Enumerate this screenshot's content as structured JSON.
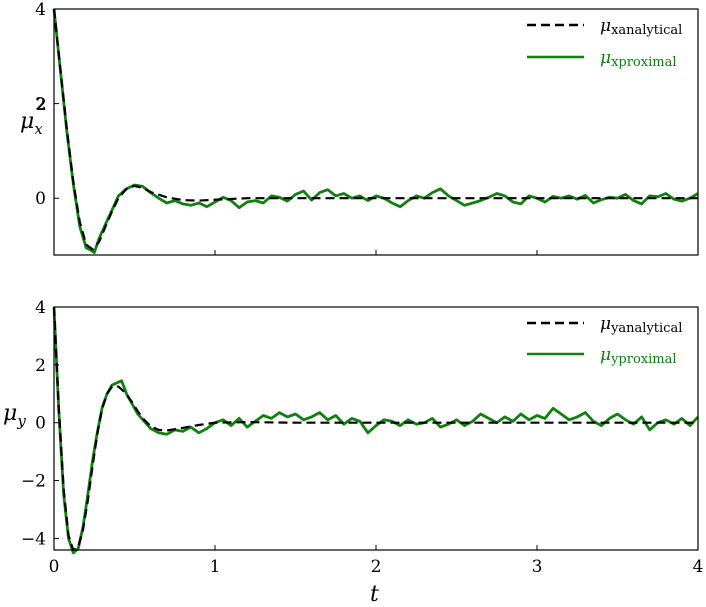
{
  "chart_data": [
    {
      "type": "line",
      "ylabel_main": "μ",
      "ylabel_sub": "x",
      "ylabel_sup": "2",
      "xlim": [
        0,
        4
      ],
      "ylim": [
        -1.2,
        4
      ],
      "yticks": [
        0,
        2,
        4
      ],
      "ytick_labels": [
        "0",
        "2",
        "4"
      ],
      "xticks": [
        0,
        1,
        2,
        3,
        4
      ],
      "xtick_labels": [],
      "legend_placement": "top-right",
      "grid": false,
      "series": [
        {
          "name_main": "μ",
          "name_sub": "xanalytical",
          "color": "#000000",
          "style": "dashed",
          "x": [
            0,
            0.04,
            0.08,
            0.12,
            0.16,
            0.2,
            0.24,
            0.28,
            0.32,
            0.36,
            0.4,
            0.45,
            0.5,
            0.55,
            0.6,
            0.7,
            0.8,
            0.9,
            1.0,
            1.2,
            1.5,
            2.0,
            2.5,
            3.0,
            3.5,
            4.0
          ],
          "values": [
            4.0,
            2.72,
            1.45,
            0.35,
            -0.5,
            -0.98,
            -1.08,
            -0.92,
            -0.6,
            -0.28,
            0.0,
            0.2,
            0.26,
            0.22,
            0.13,
            0.02,
            -0.04,
            -0.05,
            -0.03,
            0.0,
            0.0,
            0.0,
            0.0,
            0.0,
            0.0,
            0.0
          ]
        },
        {
          "name_main": "μ",
          "name_sub": "xproximal",
          "color": "#118011",
          "style": "solid",
          "x": [
            0,
            0.04,
            0.08,
            0.12,
            0.16,
            0.2,
            0.23,
            0.25,
            0.28,
            0.32,
            0.36,
            0.4,
            0.45,
            0.5,
            0.55,
            0.6,
            0.65,
            0.7,
            0.75,
            0.8,
            0.85,
            0.9,
            0.95,
            1.0,
            1.05,
            1.1,
            1.15,
            1.2,
            1.25,
            1.3,
            1.35,
            1.4,
            1.45,
            1.5,
            1.55,
            1.6,
            1.65,
            1.7,
            1.75,
            1.8,
            1.85,
            1.9,
            1.95,
            2.0,
            2.05,
            2.1,
            2.15,
            2.2,
            2.25,
            2.3,
            2.35,
            2.4,
            2.45,
            2.5,
            2.55,
            2.6,
            2.65,
            2.7,
            2.75,
            2.8,
            2.85,
            2.9,
            2.95,
            3.0,
            3.05,
            3.1,
            3.15,
            3.2,
            3.25,
            3.3,
            3.35,
            3.4,
            3.45,
            3.5,
            3.55,
            3.6,
            3.65,
            3.7,
            3.75,
            3.8,
            3.85,
            3.9,
            3.95,
            4.0
          ],
          "values": [
            4.0,
            2.7,
            1.4,
            0.3,
            -0.6,
            -1.05,
            -1.1,
            -1.15,
            -0.85,
            -0.55,
            -0.25,
            0.05,
            0.2,
            0.28,
            0.25,
            0.12,
            0.0,
            -0.1,
            -0.05,
            -0.12,
            -0.15,
            -0.1,
            -0.18,
            -0.08,
            0.02,
            -0.05,
            -0.2,
            -0.08,
            -0.05,
            -0.1,
            0.05,
            0.02,
            -0.06,
            0.08,
            0.15,
            -0.04,
            0.12,
            0.18,
            0.05,
            0.1,
            0.0,
            0.05,
            -0.05,
            0.05,
            0.0,
            -0.1,
            -0.18,
            -0.05,
            0.05,
            0.0,
            0.12,
            0.2,
            0.05,
            -0.05,
            -0.15,
            -0.1,
            -0.05,
            0.02,
            0.1,
            0.05,
            -0.08,
            -0.12,
            0.05,
            0.0,
            -0.08,
            0.04,
            0.0,
            0.05,
            -0.02,
            0.06,
            -0.1,
            -0.03,
            0.02,
            0.0,
            0.08,
            -0.05,
            -0.12,
            0.05,
            0.03,
            0.1,
            -0.02,
            -0.06,
            0.0,
            0.1
          ]
        }
      ]
    },
    {
      "type": "line",
      "ylabel_main": "μ",
      "ylabel_sub": "y",
      "xlabel": "t",
      "xlim": [
        0,
        4
      ],
      "ylim": [
        -4.4,
        4
      ],
      "yticks": [
        -4,
        -2,
        0,
        2,
        4
      ],
      "ytick_labels": [
        "−4",
        "−2",
        "0",
        "2",
        "4"
      ],
      "xticks": [
        0,
        1,
        2,
        3,
        4
      ],
      "xtick_labels": [
        "0",
        "1",
        "2",
        "3",
        "4"
      ],
      "legend_placement": "top-right",
      "grid": false,
      "series": [
        {
          "name_main": "μ",
          "name_sub": "yanalytical",
          "color": "#000000",
          "style": "dashed",
          "x": [
            0,
            0.03,
            0.06,
            0.09,
            0.12,
            0.15,
            0.18,
            0.21,
            0.24,
            0.27,
            0.3,
            0.33,
            0.36,
            0.4,
            0.44,
            0.48,
            0.52,
            0.56,
            0.6,
            0.65,
            0.7,
            0.8,
            0.9,
            1.0,
            1.2,
            1.5,
            2.0,
            2.5,
            3.0,
            3.5,
            4.0
          ],
          "values": [
            4.0,
            0.5,
            -2.3,
            -3.9,
            -4.4,
            -4.3,
            -3.7,
            -2.7,
            -1.5,
            -0.35,
            0.5,
            1.0,
            1.25,
            1.25,
            1.05,
            0.75,
            0.4,
            0.1,
            -0.12,
            -0.25,
            -0.27,
            -0.18,
            -0.08,
            0.0,
            0.02,
            0.0,
            0.0,
            0.0,
            0.0,
            0.0,
            0.0
          ]
        },
        {
          "name_main": "μ",
          "name_sub": "yproximal",
          "color": "#118011",
          "style": "solid",
          "x": [
            0,
            0.03,
            0.06,
            0.09,
            0.12,
            0.15,
            0.18,
            0.21,
            0.24,
            0.27,
            0.3,
            0.33,
            0.36,
            0.4,
            0.42,
            0.45,
            0.48,
            0.52,
            0.56,
            0.6,
            0.65,
            0.7,
            0.75,
            0.8,
            0.85,
            0.9,
            0.95,
            1.0,
            1.05,
            1.1,
            1.15,
            1.2,
            1.25,
            1.3,
            1.35,
            1.4,
            1.45,
            1.5,
            1.55,
            1.6,
            1.65,
            1.7,
            1.75,
            1.8,
            1.85,
            1.9,
            1.95,
            2.0,
            2.05,
            2.1,
            2.15,
            2.2,
            2.25,
            2.3,
            2.35,
            2.4,
            2.45,
            2.5,
            2.55,
            2.6,
            2.65,
            2.7,
            2.75,
            2.8,
            2.85,
            2.9,
            2.95,
            3.0,
            3.05,
            3.1,
            3.15,
            3.2,
            3.25,
            3.3,
            3.35,
            3.4,
            3.45,
            3.5,
            3.55,
            3.6,
            3.65,
            3.7,
            3.75,
            3.8,
            3.85,
            3.9,
            3.95,
            4.0
          ],
          "values": [
            4.0,
            0.4,
            -2.5,
            -4.0,
            -4.5,
            -4.35,
            -3.6,
            -2.5,
            -1.3,
            -0.3,
            0.55,
            1.0,
            1.3,
            1.4,
            1.45,
            1.0,
            0.7,
            0.3,
            0.05,
            -0.2,
            -0.35,
            -0.4,
            -0.25,
            -0.3,
            -0.15,
            -0.35,
            -0.2,
            0.0,
            0.1,
            -0.1,
            0.15,
            -0.15,
            0.05,
            0.25,
            0.15,
            0.35,
            0.2,
            0.3,
            0.1,
            0.2,
            0.35,
            0.1,
            0.25,
            -0.05,
            0.15,
            0.05,
            -0.35,
            -0.1,
            0.1,
            0.05,
            -0.1,
            0.1,
            -0.05,
            0.0,
            0.15,
            -0.15,
            -0.05,
            0.1,
            -0.1,
            0.05,
            0.3,
            0.15,
            0.0,
            0.2,
            0.05,
            0.3,
            0.1,
            0.25,
            0.15,
            0.5,
            0.3,
            0.1,
            0.2,
            0.35,
            0.05,
            -0.1,
            0.15,
            0.3,
            0.1,
            -0.05,
            0.2,
            -0.25,
            0.0,
            0.1,
            -0.05,
            0.15,
            -0.1,
            0.2
          ]
        }
      ]
    }
  ]
}
